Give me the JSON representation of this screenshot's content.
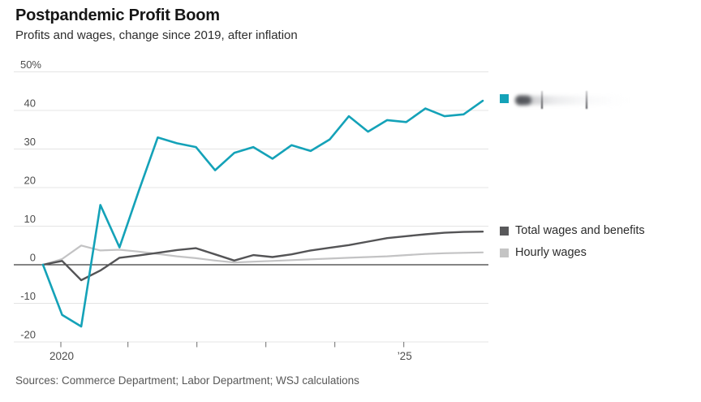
{
  "header": {
    "title": "Postpandemic Profit Boom",
    "subtitle": "Profits and wages, change since 2019, after inflation"
  },
  "legend": [
    {
      "id": "profits",
      "label": "",
      "label_blurred": true,
      "color": "#14a2b8"
    },
    {
      "id": "total-wages",
      "label": "Total wages and benefits",
      "color": "#59595b"
    },
    {
      "id": "hourly-wages",
      "label": "Hourly wages",
      "color": "#c4c4c4"
    }
  ],
  "footer": {
    "sources": "Sources: Commerce Department; Labor Department; WSJ calculations"
  },
  "chart_data": {
    "type": "line",
    "title": "Postpandemic Profit Boom",
    "subtitle": "Profits and wages, change since 2019, after inflation",
    "unit": "percent change since 2019, after inflation",
    "x": [
      "2019 Q4",
      "2020 Q1",
      "2020 Q2",
      "2020 Q3",
      "2020 Q4",
      "2021 Q1",
      "2021 Q2",
      "2021 Q3",
      "2021 Q4",
      "2022 Q1",
      "2022 Q2",
      "2022 Q3",
      "2022 Q4",
      "2023 Q1",
      "2023 Q2",
      "2023 Q3",
      "2023 Q4",
      "2024 Q1",
      "2024 Q2",
      "2024 Q3",
      "2024 Q4",
      "2025 Q1",
      "2025 Q2",
      "2025 Q3"
    ],
    "series": [
      {
        "name": "Profits (legend label blurred in image)",
        "color": "#14a2b8",
        "values": [
          0,
          -13,
          -16,
          15.5,
          4.5,
          19,
          33,
          31.5,
          30.5,
          24.5,
          29,
          30.5,
          27.5,
          31,
          29.5,
          32.5,
          38.5,
          34.5,
          37.5,
          37,
          40.5,
          38.5,
          39,
          42.5
        ]
      },
      {
        "name": "Total wages and benefits",
        "color": "#545456",
        "values": [
          0,
          1,
          -4,
          -1.5,
          1.8,
          2.4,
          3.1,
          3.8,
          4.3,
          2.7,
          1.1,
          2.5,
          2.0,
          2.7,
          3.7,
          4.4,
          5.1,
          6.0,
          6.9,
          7.4,
          7.9,
          8.3,
          8.5,
          8.6
        ]
      },
      {
        "name": "Hourly wages",
        "color": "#c3c3c4",
        "values": [
          0,
          1.5,
          5,
          3.7,
          3.9,
          3.4,
          2.8,
          2.2,
          1.7,
          1.1,
          0.6,
          0.8,
          1.0,
          1.2,
          1.4,
          1.6,
          1.8,
          2.0,
          2.2,
          2.5,
          2.8,
          3.0,
          3.1,
          3.2
        ]
      }
    ],
    "ylim": [
      -20,
      50
    ],
    "yticks": {
      "values": [
        50,
        40,
        30,
        20,
        10,
        0,
        -10,
        -20
      ],
      "labels": [
        "50%",
        "40",
        "30",
        "20",
        "10",
        "0",
        "-10",
        "-20"
      ]
    },
    "xticks": {
      "years": [
        2020,
        2021,
        2022,
        2023,
        2024,
        2025
      ],
      "labels": [
        "2020",
        "",
        "",
        "",
        "",
        "’25"
      ]
    },
    "grid": "horizontal",
    "zero_line": true,
    "legend_position": "right"
  }
}
